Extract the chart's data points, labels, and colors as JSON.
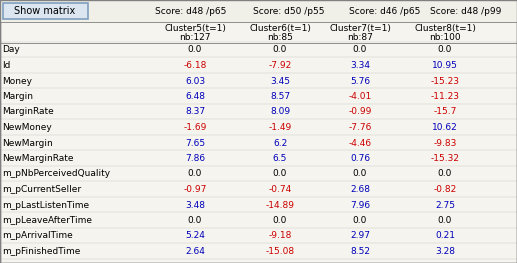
{
  "button_text": "Show matrix",
  "score_line": "Score: d48 /p65 Score: d50 /p55 Score: d46 /p65 Score: d48 /p99",
  "score_headers": [
    "Score: d48 /p65",
    "Score: d50 /p55",
    "Score: d46 /p65",
    "Score: d48 /p99"
  ],
  "cluster_headers": [
    "Cluster5(t=1)",
    "Cluster6(t=1)",
    "Cluster7(t=1)",
    "Cluster8(t=1)"
  ],
  "nb_headers": [
    "nb:127",
    "nb:85",
    "nb:87",
    "nb:100"
  ],
  "row_labels": [
    "Day",
    "Id",
    "Money",
    "Margin",
    "MarginRate",
    "NewMoney",
    "NewMargin",
    "NewMarginRate",
    "m_pNbPerceivedQuality",
    "m_pCurrentSeller",
    "m_pLastListenTime",
    "m_pLeaveAfterTime",
    "m_pArrivalTime",
    "m_pFinishedTime"
  ],
  "values": [
    [
      0.0,
      0.0,
      0.0,
      0.0
    ],
    [
      -6.18,
      -7.92,
      3.34,
      10.95
    ],
    [
      6.03,
      3.45,
      5.76,
      -15.23
    ],
    [
      6.48,
      8.57,
      -4.01,
      -11.23
    ],
    [
      8.37,
      8.09,
      -0.99,
      -15.7
    ],
    [
      -1.69,
      -1.49,
      -7.76,
      10.62
    ],
    [
      7.65,
      6.2,
      -4.46,
      -9.83
    ],
    [
      7.86,
      6.5,
      0.76,
      -15.32
    ],
    [
      0.0,
      0.0,
      0.0,
      0.0
    ],
    [
      -0.97,
      -0.74,
      2.68,
      -0.82
    ],
    [
      3.48,
      -14.89,
      7.96,
      2.75
    ],
    [
      0.0,
      0.0,
      0.0,
      0.0
    ],
    [
      5.24,
      -9.18,
      2.97,
      0.21
    ],
    [
      2.64,
      -15.08,
      8.52,
      3.28
    ]
  ],
  "bg_color": "#d4d0c8",
  "table_bg": "#ece9d8",
  "button_bg": "#dce6f1",
  "button_border": "#7f9fbf",
  "positive_color": "#0000bb",
  "negative_color": "#cc0000",
  "zero_color": "#000000",
  "text_color": "#000000",
  "header_color": "#000000",
  "border_color": "#808080",
  "inner_bg": "#f5f4ee"
}
